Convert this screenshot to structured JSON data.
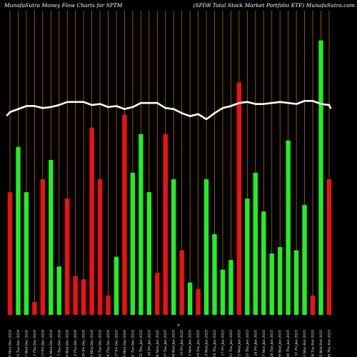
{
  "header": {
    "left_title": "MunafaSutra  Money Flow  Charts for SPTM",
    "right_title": "(SPDR Total Stock Market Portfolio  ETF) MunafaSutra.com"
  },
  "colors": {
    "background": "#000000",
    "up": "#22ee22",
    "down": "#ee1111",
    "gridline": "#b06a00",
    "price_line": "#ffffff",
    "text": "#ffffff"
  },
  "chart_data": {
    "type": "bar",
    "grid": "vertical",
    "zero_label": "0",
    "categories": [
      "Mon 09 Dec",
      "Tue 10 Dec",
      "Wed 11 Dec",
      "Thu 12 Dec",
      "Fri 13 Dec",
      "Mon 16 Dec",
      "Tue 17 Dec",
      "Wed 18 Dec",
      "Thu 19 Dec",
      "Fri 20 Dec",
      "Mon 23 Dec",
      "Tue 24 Dec",
      "Thu 26 Dec",
      "Fri 27 Dec",
      "Mon 30 Dec",
      "Tue 31 Dec",
      "Thu 02 Jan",
      "Fri 03 Jan",
      "Mon 06 Jan",
      "Tue 07 Jan",
      "Wed 08 Jan",
      "Fri 10 Jan",
      "Mon 13 Jan",
      "Tue 14 Jan",
      "Wed 15 Jan",
      "Thu 16 Jan",
      "Fri 17 Jan",
      "Tue 21 Jan",
      "Wed 22 Jan",
      "Thu 23 Jan",
      "Fri 24 Jan",
      "Mon 27 Jan",
      "Tue 28 Jan",
      "Wed 29 Jan",
      "Thu 30 Jan",
      "Fri 31 Jan",
      "Mon 03 Feb",
      "Tue 04 Feb",
      "Wed 05 Feb",
      "Thu 06 Feb"
    ],
    "x_tick_labels": [
      "09 Mon Dec 2024",
      "10 Tue Dec 2024",
      "11 Wed Dec 2024",
      "12 Thu Dec 2024",
      "13 Fri Dec 2024",
      "16 Mon Dec 2024",
      "17 Tue Dec 2024",
      "18 Wed Dec 2024",
      "19 Thu Dec 2024",
      "20 Fri Dec 2024",
      "23 Mon Dec 2024",
      "24 Tue Dec 2024",
      "26 Thu Dec 2024",
      "27 Fri Dec 2024",
      "30 Mon Dec 2024",
      "31 Tue Dec 2024",
      "02 Thu Jan 2025",
      "03 Fri Jan 2025",
      "06 Mon Jan 2025",
      "07 Tue Jan 2025",
      "08 Wed Jan 2025",
      "10 Fri Jan 2025",
      "13 Mon Jan 2025",
      "14 Tue Jan 2025",
      "15 Wed Jan 2025",
      "16 Thu Jan 2025",
      "17 Fri Jan 2025",
      "21 Tue Jan 2025",
      "22 Wed Jan 2025",
      "23 Thu Jan 2025",
      "24 Fri Jan 2025",
      "27 Mon Jan 2025",
      "28 Tue Jan 2025",
      "29 Wed Jan 2025",
      "30 Thu Jan 2025",
      "31 Fri Jan 2025",
      "03 Mon Feb 2025",
      "04 Tue Feb 2025",
      "05 Wed Feb 2025",
      "06 Thu Feb 2025"
    ],
    "series": [
      {
        "role": "money_flow_bars",
        "values": [
          19,
          26,
          19,
          2,
          21,
          24,
          7.5,
          18,
          6,
          5.5,
          29,
          21,
          3,
          9,
          31,
          22,
          28,
          19,
          6.5,
          28,
          21,
          10,
          5,
          4,
          21,
          12.5,
          7,
          8.5,
          36,
          18,
          22,
          16,
          9.5,
          10.5,
          27,
          10,
          17,
          3,
          42.5,
          21
        ],
        "direction": [
          "down",
          "up",
          "up",
          "down",
          "down",
          "up",
          "up",
          "down",
          "down",
          "down",
          "down",
          "down",
          "down",
          "up",
          "down",
          "up",
          "up",
          "up",
          "down",
          "down",
          "up",
          "down",
          "up",
          "down",
          "up",
          "up",
          "up",
          "up",
          "down",
          "up",
          "up",
          "up",
          "up",
          "up",
          "up",
          "up",
          "up",
          "down",
          "up",
          "down"
        ]
      },
      {
        "role": "price_line",
        "values": [
          100.0,
          100.3,
          100.6,
          100.6,
          100.4,
          100.5,
          100.7,
          101.0,
          101.0,
          101.0,
          100.7,
          100.8,
          100.5,
          100.6,
          100.3,
          100.5,
          100.9,
          100.9,
          100.9,
          100.4,
          100.3,
          99.9,
          99.6,
          99.8,
          99.3,
          99.9,
          100.4,
          100.6,
          100.9,
          101.0,
          100.8,
          100.8,
          100.9,
          101.0,
          100.9,
          100.8,
          101.1,
          101.1,
          100.8,
          100.7
        ],
        "start_value": 99.7
      }
    ],
    "ylim": [
      0,
      45
    ],
    "price_ylim": [
      80,
      110
    ],
    "legend": "none"
  }
}
